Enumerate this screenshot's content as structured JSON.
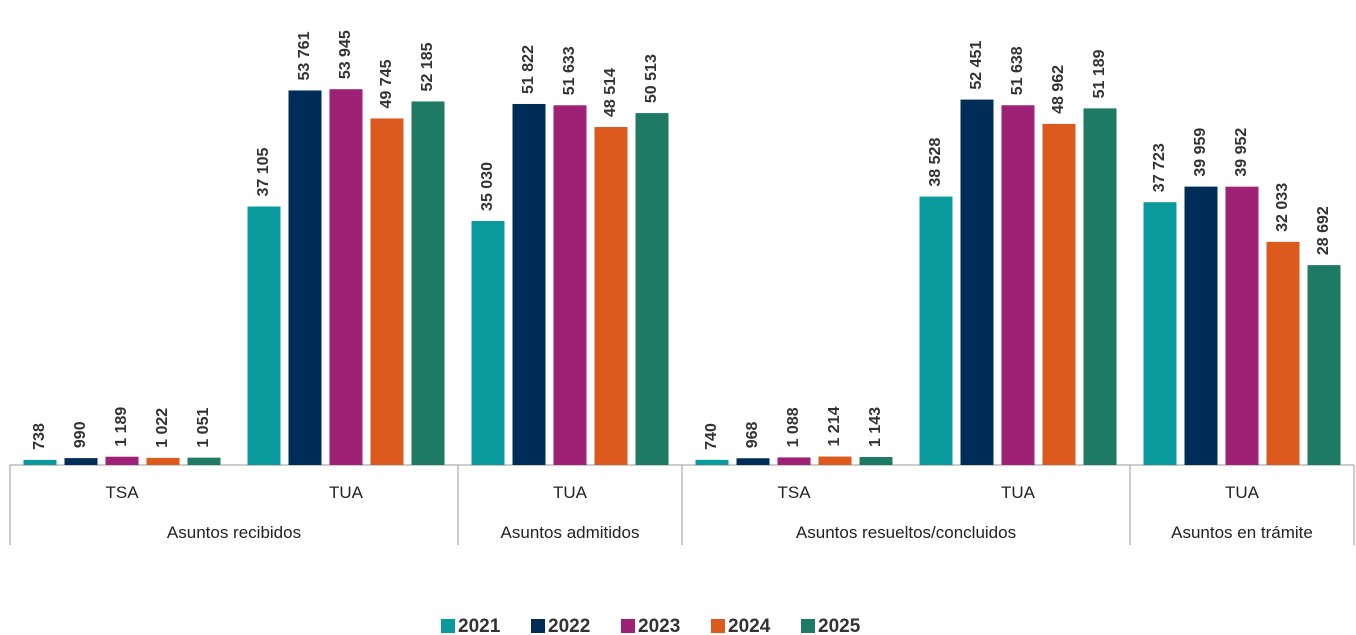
{
  "chart_data": {
    "type": "bar",
    "groups": [
      {
        "name": "Asuntos recibidos",
        "categories": [
          "TSA",
          "TUA"
        ]
      },
      {
        "name": "Asuntos admitidos",
        "categories": [
          "TUA"
        ]
      },
      {
        "name": "Asuntos resueltos/concluidos",
        "categories": [
          "TSA",
          "TUA"
        ]
      },
      {
        "name": "Asuntos en trámite",
        "categories": [
          "TUA"
        ]
      }
    ],
    "series": [
      {
        "name": "2021",
        "color": "#0a9a9c",
        "values": [
          738,
          37105,
          35030,
          740,
          38528,
          37723
        ],
        "value_labels": [
          "738",
          "37 105",
          "35 030",
          "740",
          "38 528",
          "37 723"
        ]
      },
      {
        "name": "2022",
        "color": "#002d57",
        "values": [
          990,
          53761,
          51822,
          968,
          52451,
          39959
        ],
        "value_labels": [
          "990",
          "53 761",
          "51 822",
          "968",
          "52 451",
          "39 959"
        ]
      },
      {
        "name": "2023",
        "color": "#9e2176",
        "values": [
          1189,
          53945,
          51633,
          1088,
          51638,
          39952
        ],
        "value_labels": [
          "1 189",
          "53 945",
          "51 633",
          "1 088",
          "51 638",
          "39 952"
        ]
      },
      {
        "name": "2024",
        "color": "#dc5a1e",
        "values": [
          1022,
          49745,
          48514,
          1214,
          48962,
          32033
        ],
        "value_labels": [
          "1 022",
          "49 745",
          "48 514",
          "1 214",
          "48 962",
          "32 033"
        ]
      },
      {
        "name": "2025",
        "color": "#1f7a64",
        "values": [
          1051,
          52185,
          50513,
          1143,
          51189,
          28692
        ],
        "value_labels": [
          "1 051",
          "52 185",
          "50 513",
          "1 143",
          "51 189",
          "28 692"
        ]
      }
    ],
    "ylim": [
      0,
      60000
    ],
    "legend": "bottom"
  }
}
